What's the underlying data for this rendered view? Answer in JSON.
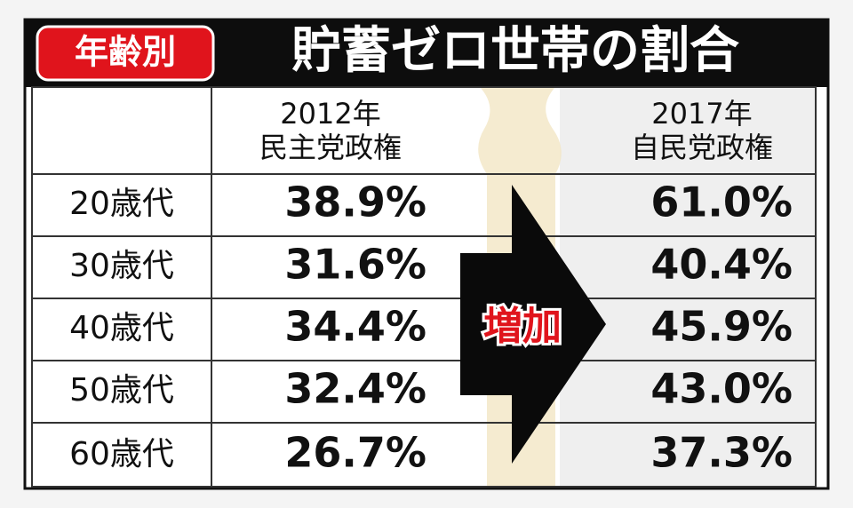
{
  "header": {
    "badge": "年齢別",
    "title": "貯蓄ゼロ世帯の割合"
  },
  "table": {
    "columns": [
      {
        "year": "2012年",
        "label": "民主党政権"
      },
      {
        "year": "2017年",
        "label": "自民党政権"
      }
    ],
    "rows": [
      [
        "20歳代",
        "38.9%",
        "61.0%"
      ],
      [
        "30歳代",
        "31.6%",
        "40.4%"
      ],
      [
        "40歳代",
        "34.4%",
        "45.9%"
      ],
      [
        "50歳代",
        "32.4%",
        "43.0%"
      ],
      [
        "60歳代",
        "26.7%",
        "37.3%"
      ]
    ]
  },
  "arrow": {
    "label": "増加"
  }
}
